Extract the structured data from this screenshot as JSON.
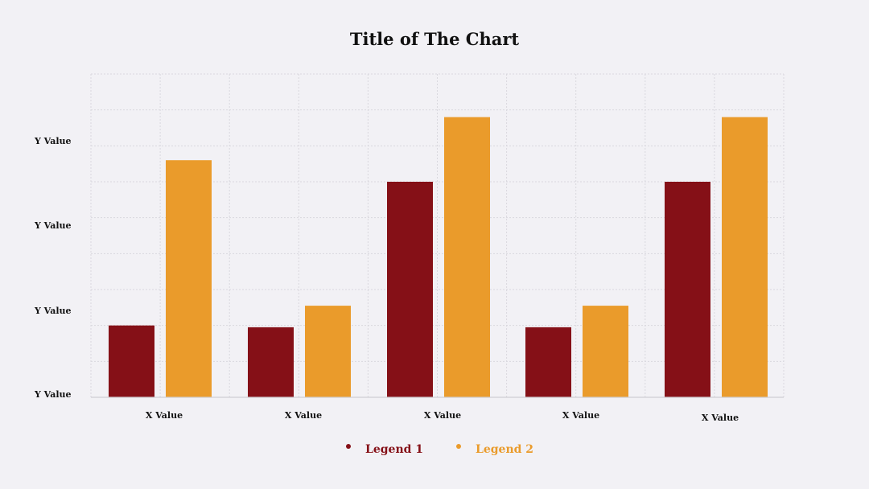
{
  "colors": {
    "background": "#f2f1f5",
    "series_1": "#851017",
    "series_2": "#ea9b2b"
  },
  "chart_data": {
    "type": "bar",
    "title": "Title of The Chart",
    "xlabel": "",
    "ylabel": "",
    "categories": [
      "X Value",
      "X Value",
      "X Value",
      "X Value",
      "X Value"
    ],
    "y_tick_labels": [
      "Y Value",
      "Y Value",
      "Y Value",
      "Y Value"
    ],
    "ylim": [
      0,
      9
    ],
    "grid": true,
    "legend_position": "bottom-center",
    "series": [
      {
        "name": "Legend 1",
        "color": "#851017",
        "values": [
          2.0,
          1.95,
          6.0,
          1.95,
          6.0
        ]
      },
      {
        "name": "Legend 2",
        "color": "#ea9b2b",
        "values": [
          6.6,
          2.55,
          7.8,
          2.55,
          7.8
        ]
      }
    ]
  }
}
